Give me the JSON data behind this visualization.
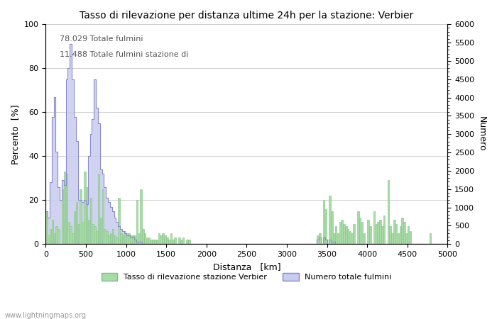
{
  "title": "Tasso di rilevazione per distanza ultime 24h per la stazione: Verbier",
  "xlabel": "Distanza   [km]",
  "ylabel_left": "Percento  [%]",
  "ylabel_right": "Numero",
  "annotation_line1": "78.029 Totale fulmini",
  "annotation_line2": "11.488 Totale fulmini stazione di",
  "watermark": "www.lightningmaps.org",
  "legend_green": "Tasso di rilevazione stazione Verbier",
  "legend_blue": "Numero totale fulmini",
  "xlim": [
    0,
    5000
  ],
  "ylim_left": [
    0,
    100
  ],
  "ylim_right": [
    0,
    6000
  ],
  "xticks": [
    0,
    500,
    1000,
    1500,
    2000,
    2500,
    3000,
    3500,
    4000,
    4500,
    5000
  ],
  "yticks_left": [
    0,
    20,
    40,
    60,
    80,
    100
  ],
  "yticks_right": [
    0,
    500,
    1000,
    1500,
    2000,
    2500,
    3000,
    3500,
    4000,
    4500,
    5000,
    5500,
    6000
  ],
  "bar_color": "#a8dba8",
  "bar_edge_color": "#80c080",
  "fill_color": "#c8ccee",
  "line_color": "#8888cc",
  "bg_color": "#ffffff",
  "grid_color": "#bbbbbb",
  "bin_width": 25,
  "green_bars": [
    15,
    4,
    7,
    11,
    5,
    8,
    7,
    0,
    25,
    33,
    32,
    10,
    8,
    5,
    15,
    19,
    9,
    25,
    10,
    33,
    26,
    11,
    21,
    9,
    8,
    6,
    32,
    12,
    25,
    7,
    6,
    4,
    5,
    7,
    4,
    3,
    21,
    5,
    4,
    6,
    5,
    5,
    4,
    4,
    4,
    20,
    5,
    25,
    7,
    5,
    3,
    3,
    2,
    2,
    2,
    2,
    5,
    4,
    5,
    4,
    3,
    2,
    5,
    2,
    3,
    0,
    3,
    2,
    3,
    0,
    2,
    2,
    0,
    0,
    0,
    0,
    0,
    0,
    0,
    0,
    0,
    0,
    0,
    0,
    0,
    0,
    0,
    0,
    0,
    0,
    0,
    0,
    0,
    0,
    0,
    0,
    0,
    0,
    0,
    0,
    0,
    0,
    0,
    0,
    0,
    0,
    0,
    0,
    0,
    0,
    0,
    0,
    0,
    0,
    0,
    0,
    0,
    0,
    0,
    0,
    0,
    0,
    0,
    0,
    0,
    0,
    0,
    0,
    0,
    0,
    0,
    0,
    0,
    0,
    0,
    4,
    5,
    0,
    20,
    16,
    0,
    22,
    15,
    5,
    8,
    5,
    10,
    11,
    9,
    8,
    7,
    6,
    5,
    9,
    0,
    15,
    12,
    10,
    5,
    0,
    11,
    8,
    0,
    15,
    9,
    10,
    11,
    8,
    13,
    0,
    29,
    8,
    5,
    11,
    9,
    5,
    8,
    12,
    10,
    5,
    8,
    6,
    0,
    0,
    0,
    0,
    0,
    0,
    0,
    0,
    0,
    5,
    0,
    0,
    0,
    0,
    0,
    0,
    0,
    0,
    0,
    0,
    0,
    0,
    0,
    0,
    0,
    0,
    0,
    0,
    0,
    0,
    0,
    0,
    0,
    0,
    0,
    0,
    0,
    0,
    0,
    0,
    0,
    0,
    0,
    0,
    0,
    0,
    0,
    0,
    0,
    0,
    0,
    0,
    0,
    0,
    0,
    0,
    0,
    0,
    0,
    0
  ],
  "blue_fill": [
    15,
    12,
    28,
    58,
    67,
    42,
    26,
    20,
    29,
    27,
    75,
    80,
    91,
    75,
    58,
    47,
    20,
    20,
    19,
    20,
    18,
    40,
    50,
    57,
    75,
    62,
    55,
    34,
    32,
    26,
    21,
    19,
    17,
    15,
    12,
    10,
    8,
    7,
    6,
    5,
    4,
    4,
    3,
    3,
    2,
    1,
    1,
    1,
    0,
    0,
    0,
    0,
    0,
    0,
    0,
    0,
    0,
    0,
    0,
    0,
    0,
    0,
    0,
    0,
    0,
    0,
    0,
    0,
    0,
    0,
    0,
    0,
    0,
    0,
    0,
    0,
    0,
    0,
    0,
    0,
    0,
    0,
    0,
    0,
    0,
    0,
    0,
    0,
    0,
    0,
    0,
    0,
    0,
    0,
    0,
    0,
    0,
    0,
    0,
    0,
    0,
    0,
    0,
    0,
    0,
    0,
    0,
    0,
    0,
    0,
    0,
    0,
    0,
    0,
    0,
    0,
    0,
    0,
    0,
    0,
    0,
    0,
    0,
    0,
    0,
    0,
    0,
    0,
    0,
    0,
    0,
    0,
    0,
    0,
    0,
    2,
    3,
    0,
    3,
    2,
    0,
    2,
    1,
    1,
    0,
    0,
    0,
    0,
    0,
    0,
    0,
    0,
    0,
    0,
    0,
    0,
    0,
    0,
    0,
    0,
    0,
    0,
    0,
    0,
    0,
    0,
    0,
    0,
    0,
    0,
    0,
    0,
    0,
    0,
    0,
    0,
    0,
    0,
    0,
    0,
    0,
    0,
    0,
    0,
    0,
    0,
    0,
    0,
    0,
    0,
    0,
    0,
    0,
    0,
    0,
    0,
    0,
    0,
    0,
    0,
    0,
    0,
    0,
    0,
    0,
    0,
    0,
    0,
    0,
    0,
    0,
    0,
    0,
    0,
    0,
    0,
    0,
    0,
    0,
    0,
    0,
    0,
    0,
    0,
    0,
    0,
    0,
    0,
    0,
    0,
    0,
    0,
    0,
    0,
    0,
    0,
    0,
    0,
    0,
    0,
    0,
    0
  ]
}
